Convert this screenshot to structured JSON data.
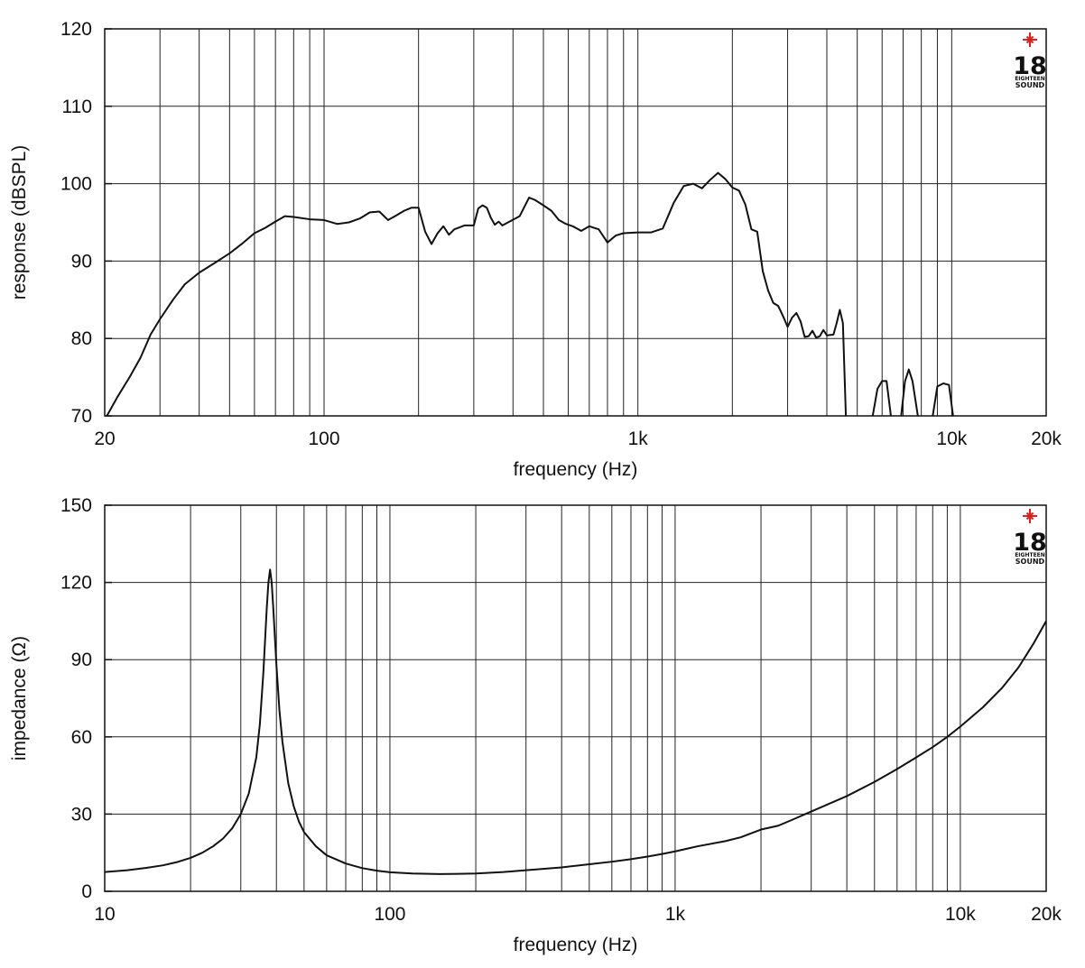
{
  "chart_data": [
    {
      "type": "line",
      "xscale": "log",
      "xlim": [
        20,
        20000
      ],
      "ylim": [
        70,
        120
      ],
      "grid": true,
      "xlabel": "frequency (Hz)",
      "ylabel": "response (dBSPL)",
      "xticks": [
        20,
        100,
        1000,
        10000,
        20000
      ],
      "xticklabels": [
        "20",
        "100",
        "1k",
        "10k",
        "20k"
      ],
      "yticks": [
        70,
        80,
        90,
        100,
        110,
        120
      ],
      "yticklabels": [
        "70",
        "80",
        "90",
        "100",
        "110",
        "120"
      ],
      "logo": {
        "number": "18",
        "line1": "EIGHTEEN",
        "line2": "SOUND"
      },
      "series": [
        {
          "color": "#111111",
          "segments": [
            [
              [
                20,
                69.5
              ],
              [
                22,
                72.5
              ],
              [
                24,
                75
              ],
              [
                26,
                77.5
              ],
              [
                28,
                80.5
              ],
              [
                30,
                82.5
              ],
              [
                33,
                85
              ],
              [
                36,
                87
              ],
              [
                40,
                88.5
              ],
              [
                45,
                89.8
              ],
              [
                50,
                91
              ],
              [
                55,
                92.3
              ],
              [
                60,
                93.6
              ],
              [
                65,
                94.3
              ],
              [
                70,
                95.1
              ],
              [
                75,
                95.8
              ],
              [
                80,
                95.7
              ],
              [
                90,
                95.4
              ],
              [
                100,
                95.3
              ],
              [
                110,
                94.8
              ],
              [
                120,
                95
              ],
              [
                130,
                95.5
              ],
              [
                140,
                96.3
              ],
              [
                150,
                96.4
              ],
              [
                160,
                95.3
              ],
              [
                170,
                95.9
              ],
              [
                180,
                96.5
              ],
              [
                190,
                96.9
              ],
              [
                200,
                96.9
              ],
              [
                210,
                93.8
              ],
              [
                220,
                92.2
              ],
              [
                230,
                93.6
              ],
              [
                240,
                94.5
              ],
              [
                250,
                93.4
              ],
              [
                260,
                94.1
              ],
              [
                280,
                94.6
              ],
              [
                300,
                94.6
              ],
              [
                310,
                96.8
              ],
              [
                320,
                97.2
              ],
              [
                330,
                96.9
              ],
              [
                340,
                95.6
              ],
              [
                350,
                94.7
              ],
              [
                360,
                95.1
              ],
              [
                370,
                94.6
              ],
              [
                390,
                95.1
              ],
              [
                420,
                95.8
              ],
              [
                450,
                98.2
              ],
              [
                470,
                97.9
              ],
              [
                500,
                97.2
              ],
              [
                530,
                96.5
              ],
              [
                560,
                95.3
              ],
              [
                590,
                94.8
              ],
              [
                620,
                94.5
              ],
              [
                660,
                93.9
              ],
              [
                700,
                94.5
              ],
              [
                750,
                94.1
              ],
              [
                800,
                92.4
              ],
              [
                850,
                93.3
              ],
              [
                900,
                93.6
              ],
              [
                1000,
                93.7
              ],
              [
                1100,
                93.7
              ],
              [
                1200,
                94.2
              ],
              [
                1300,
                97.5
              ],
              [
                1400,
                99.7
              ],
              [
                1500,
                100
              ],
              [
                1600,
                99.4
              ],
              [
                1700,
                100.5
              ],
              [
                1800,
                101.4
              ],
              [
                1900,
                100.6
              ],
              [
                2000,
                99.5
              ],
              [
                2100,
                99.1
              ],
              [
                2200,
                97.3
              ],
              [
                2300,
                94.1
              ],
              [
                2400,
                93.8
              ],
              [
                2500,
                88.7
              ],
              [
                2600,
                86.2
              ],
              [
                2700,
                84.6
              ],
              [
                2800,
                84.2
              ],
              [
                2900,
                82.9
              ],
              [
                3000,
                81.5
              ],
              [
                3100,
                82.7
              ],
              [
                3200,
                83.3
              ],
              [
                3300,
                82.2
              ],
              [
                3400,
                80.2
              ],
              [
                3500,
                80.3
              ],
              [
                3600,
                81
              ],
              [
                3700,
                80.1
              ],
              [
                3800,
                80.3
              ],
              [
                3900,
                81.1
              ],
              [
                4000,
                80.4
              ],
              [
                4200,
                80.5
              ],
              [
                4300,
                82
              ],
              [
                4400,
                83.7
              ],
              [
                4500,
                82
              ],
              [
                4600,
                70
              ]
            ],
            [
              [
                5600,
                70
              ],
              [
                5800,
                73.5
              ],
              [
                6000,
                74.5
              ],
              [
                6200,
                74.5
              ],
              [
                6400,
                70
              ]
            ],
            [
              [
                6900,
                70
              ],
              [
                7100,
                74.5
              ],
              [
                7300,
                76
              ],
              [
                7500,
                74.5
              ],
              [
                7800,
                70
              ]
            ],
            [
              [
                8700,
                70
              ],
              [
                9000,
                73.8
              ],
              [
                9400,
                74.2
              ],
              [
                9800,
                74
              ],
              [
                10100,
                70
              ]
            ]
          ]
        }
      ]
    },
    {
      "type": "line",
      "xscale": "log",
      "xlim": [
        10,
        20000
      ],
      "ylim": [
        0,
        150
      ],
      "grid": true,
      "xlabel": "frequency (Hz)",
      "ylabel": "impedance (Ω)",
      "xticks": [
        10,
        100,
        1000,
        10000,
        20000
      ],
      "xticklabels": [
        "10",
        "100",
        "1k",
        "10k",
        "20k"
      ],
      "yticks": [
        0,
        30,
        60,
        90,
        120,
        150
      ],
      "yticklabels": [
        "0",
        "30",
        "60",
        "90",
        "120",
        "150"
      ],
      "logo": {
        "number": "18",
        "line1": "EIGHTEEN",
        "line2": "SOUND"
      },
      "series": [
        {
          "color": "#111111",
          "segments": [
            [
              [
                10,
                7.5
              ],
              [
                12,
                8.2
              ],
              [
                14,
                9.1
              ],
              [
                16,
                10.1
              ],
              [
                18,
                11.4
              ],
              [
                20,
                13
              ],
              [
                22,
                15
              ],
              [
                24,
                17.5
              ],
              [
                26,
                20.5
              ],
              [
                28,
                24.5
              ],
              [
                30,
                30
              ],
              [
                32,
                38
              ],
              [
                34,
                52
              ],
              [
                35,
                65
              ],
              [
                36,
                85
              ],
              [
                37,
                110
              ],
              [
                37.5,
                120
              ],
              [
                38,
                125
              ],
              [
                38.5,
                120
              ],
              [
                39,
                110
              ],
              [
                40,
                88
              ],
              [
                41,
                70
              ],
              [
                42,
                58
              ],
              [
                44,
                42
              ],
              [
                46,
                33
              ],
              [
                48,
                27
              ],
              [
                50,
                23
              ],
              [
                55,
                17.5
              ],
              [
                60,
                14
              ],
              [
                70,
                10.8
              ],
              [
                80,
                9
              ],
              [
                90,
                8
              ],
              [
                100,
                7.4
              ],
              [
                120,
                6.9
              ],
              [
                150,
                6.7
              ],
              [
                200,
                6.9
              ],
              [
                250,
                7.5
              ],
              [
                300,
                8.2
              ],
              [
                400,
                9.3
              ],
              [
                500,
                10.5
              ],
              [
                600,
                11.5
              ],
              [
                700,
                12.5
              ],
              [
                800,
                13.5
              ],
              [
                900,
                14.5
              ],
              [
                1000,
                15.5
              ],
              [
                1200,
                17.5
              ],
              [
                1500,
                19.5
              ],
              [
                1700,
                21
              ],
              [
                2000,
                24
              ],
              [
                2300,
                25.5
              ],
              [
                2600,
                28
              ],
              [
                3000,
                31
              ],
              [
                4000,
                37
              ],
              [
                5000,
                42.5
              ],
              [
                6000,
                47.5
              ],
              [
                7000,
                52
              ],
              [
                8000,
                56
              ],
              [
                9000,
                60
              ],
              [
                10000,
                64
              ],
              [
                12000,
                71.5
              ],
              [
                14000,
                79
              ],
              [
                16000,
                87
              ],
              [
                18000,
                96
              ],
              [
                20000,
                105
              ]
            ]
          ]
        }
      ]
    }
  ]
}
